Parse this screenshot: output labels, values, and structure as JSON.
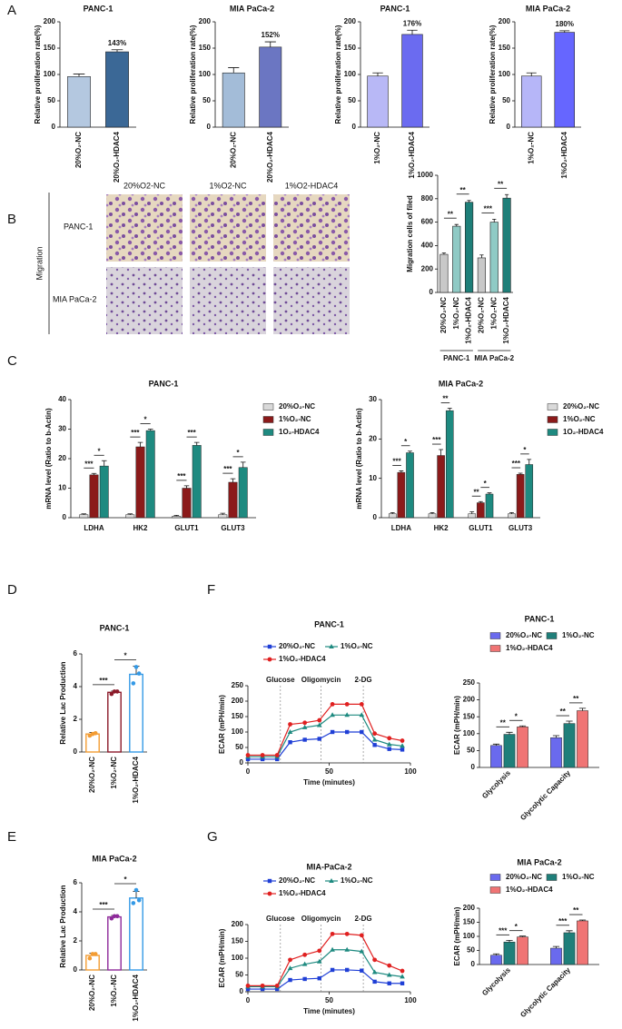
{
  "panel_labels": [
    "A",
    "B",
    "C",
    "D",
    "E",
    "F",
    "G"
  ],
  "migration_images": {
    "columns": [
      "20%O2-NC",
      "1%O2-NC",
      "1%O2-HDAC4"
    ],
    "rows": [
      "PANC-1",
      "MIA PaCa-2"
    ],
    "side_label": "Migration"
  },
  "chart_data": [
    {
      "type": "bar",
      "title": "PANC-1",
      "ylabel": "Relative proliferation rate(%)",
      "categories": [
        "20%O₂-NC",
        "20%O₂-HDAC4"
      ],
      "values": [
        96,
        143
      ],
      "errors": [
        5,
        4
      ],
      "value_labels": [
        null,
        "143%"
      ],
      "colors": [
        "#b4c8e0",
        "#3b6896"
      ],
      "ylim": [
        0,
        200
      ],
      "yticks": [
        0,
        50,
        100,
        150,
        200
      ]
    },
    {
      "type": "bar",
      "title": "MIA PaCa-2",
      "ylabel": "Relative proliferation rate(%)",
      "categories": [
        "20%O₂-NC",
        "20%O₂-HDAC4"
      ],
      "values": [
        103,
        152
      ],
      "errors": [
        10,
        10
      ],
      "value_labels": [
        null,
        "152%"
      ],
      "colors": [
        "#a3bcd8",
        "#6b76c2"
      ],
      "ylim": [
        0,
        200
      ],
      "yticks": [
        0,
        50,
        100,
        150,
        200
      ]
    },
    {
      "type": "bar",
      "title": "PANC-1",
      "ylabel": "Relative proliferation rate(%)",
      "categories": [
        "1%O₂-NC",
        "1%O₂-HDAC4"
      ],
      "values": [
        97,
        176
      ],
      "errors": [
        6,
        8
      ],
      "value_labels": [
        null,
        "176%"
      ],
      "colors": [
        "#b8b8f6",
        "#6b6bf0"
      ],
      "ylim": [
        0,
        200
      ],
      "yticks": [
        0,
        50,
        100,
        150,
        200
      ]
    },
    {
      "type": "bar",
      "title": "MIA PaCa-2",
      "ylabel": "Relative proliferation rate(%)",
      "categories": [
        "1%O₂-NC",
        "1%O₂-HDAC4"
      ],
      "values": [
        97,
        180
      ],
      "errors": [
        6,
        3
      ],
      "value_labels": [
        null,
        "180%"
      ],
      "colors": [
        "#b6b6f8",
        "#6666ff"
      ],
      "ylim": [
        0,
        200
      ],
      "yticks": [
        0,
        50,
        100,
        150,
        200
      ]
    },
    {
      "type": "bar",
      "ylabel": "Migration cells of filed",
      "categories": [
        "20%O₂-NC",
        "1%O₂-NC",
        "1%O₂-HDAC4",
        "20%O₂-NC",
        "1%O₂-NC",
        "1%O₂-HDAC4"
      ],
      "groups": [
        {
          "label": "PANC-1",
          "size": 3
        },
        {
          "label": "MIA PaCa-2",
          "size": 3
        }
      ],
      "values": [
        325,
        565,
        770,
        295,
        600,
        805
      ],
      "errors": [
        12,
        15,
        15,
        25,
        25,
        30
      ],
      "colors": [
        "#c8c8c8",
        "#8fcac5",
        "#1e7f79",
        "#c8c8c8",
        "#8fcac5",
        "#1e7f79"
      ],
      "ylim": [
        0,
        1000
      ],
      "yticks": [
        0,
        200,
        400,
        600,
        800,
        1000
      ],
      "significance": [
        {
          "text": "**",
          "between": [
            0,
            1
          ]
        },
        {
          "text": "**",
          "between": [
            1,
            2
          ]
        },
        {
          "text": "***",
          "between": [
            3,
            4
          ]
        },
        {
          "text": "**",
          "between": [
            4,
            5
          ]
        }
      ]
    },
    {
      "type": "grouped_bar",
      "title": "PANC-1",
      "ylabel": "mRNA level (Ratio to b-Actin)",
      "categories": [
        "LDHA",
        "HK2",
        "GLUT1",
        "GLUT3"
      ],
      "ylim": [
        0,
        40
      ],
      "yticks": [
        0,
        10,
        20,
        30,
        40
      ],
      "series": [
        {
          "name": "20%O₂-NC",
          "color": "#d9d9d9",
          "values": [
            1,
            1,
            0.5,
            1
          ],
          "errors": [
            0.3,
            0.3,
            0.3,
            0.5
          ]
        },
        {
          "name": "1%O₂-NC",
          "color": "#8b1a1a",
          "values": [
            14.5,
            24,
            10,
            12
          ],
          "errors": [
            0.5,
            1.5,
            0.8,
            1.2
          ]
        },
        {
          "name": "1O₂-HDAC4",
          "color": "#1e8a80",
          "values": [
            17.5,
            29.5,
            24.5,
            17
          ],
          "errors": [
            1.8,
            0.5,
            1,
            1.8
          ]
        }
      ],
      "significance": [
        {
          "category": 0,
          "between": [
            0,
            1
          ],
          "text": "***"
        },
        {
          "category": 0,
          "between": [
            1,
            2
          ],
          "text": "*"
        },
        {
          "category": 1,
          "between": [
            0,
            1
          ],
          "text": "***"
        },
        {
          "category": 1,
          "between": [
            1,
            2
          ],
          "text": "*"
        },
        {
          "category": 2,
          "between": [
            0,
            1
          ],
          "text": "***"
        },
        {
          "category": 2,
          "between": [
            1,
            2
          ],
          "text": "***"
        },
        {
          "category": 3,
          "between": [
            0,
            1
          ],
          "text": "***"
        },
        {
          "category": 3,
          "between": [
            1,
            2
          ],
          "text": "*"
        }
      ]
    },
    {
      "type": "grouped_bar",
      "title": "MIA PaCa-2",
      "ylabel": "mRNA level (Ratio to b-Actin)",
      "categories": [
        "LDHA",
        "HK2",
        "GLUT1",
        "GLUT3"
      ],
      "ylim": [
        0,
        30
      ],
      "yticks": [
        0,
        10,
        20,
        30
      ],
      "series": [
        {
          "name": "20%O₂-NC",
          "color": "#d9d9d9",
          "values": [
            1,
            1,
            1,
            1
          ],
          "errors": [
            0.3,
            0.3,
            0.5,
            0.3
          ]
        },
        {
          "name": "1%O₂-NC",
          "color": "#8b1a1a",
          "values": [
            11.5,
            15.8,
            3.8,
            11
          ],
          "errors": [
            0.4,
            1.5,
            0.3,
            0.3
          ]
        },
        {
          "name": "1O₂-HDAC4",
          "color": "#1e8a80",
          "values": [
            16.5,
            27.2,
            6,
            13.5
          ],
          "errors": [
            0.4,
            0.6,
            0.3,
            1.3
          ]
        }
      ],
      "significance": [
        {
          "category": 0,
          "between": [
            0,
            1
          ],
          "text": "***"
        },
        {
          "category": 0,
          "between": [
            1,
            2
          ],
          "text": "*"
        },
        {
          "category": 1,
          "between": [
            0,
            1
          ],
          "text": "***"
        },
        {
          "category": 1,
          "between": [
            1,
            2
          ],
          "text": "**"
        },
        {
          "category": 2,
          "between": [
            0,
            1
          ],
          "text": "**"
        },
        {
          "category": 2,
          "between": [
            1,
            2
          ],
          "text": "*"
        },
        {
          "category": 3,
          "between": [
            0,
            1
          ],
          "text": "***"
        },
        {
          "category": 3,
          "between": [
            1,
            2
          ],
          "text": "*"
        }
      ]
    },
    {
      "type": "bar",
      "style": "hollow",
      "title": "PANC-1",
      "ylabel": "Relative Lac Production",
      "categories": [
        "20%O₂-NC",
        "1%O₂-NC",
        "1%O₂-HDAC4"
      ],
      "values": [
        1.1,
        3.65,
        4.75
      ],
      "errors": [
        0.1,
        0.08,
        0.5
      ],
      "points": [
        [
          1.0,
          1.1,
          1.15
        ],
        [
          3.55,
          3.7,
          3.7
        ],
        [
          4.2,
          5.2,
          4.8
        ]
      ],
      "colors": [
        "#f39c33",
        "#8b1a2a",
        "#3399e6"
      ],
      "ylim": [
        0,
        6
      ],
      "yticks": [
        0,
        2,
        4,
        6
      ],
      "significance": [
        {
          "text": "***",
          "between": [
            0,
            1
          ]
        },
        {
          "text": "*",
          "between": [
            1,
            2
          ]
        }
      ]
    },
    {
      "type": "bar",
      "style": "hollow",
      "title": "MIA PaCa-2",
      "ylabel": "Relative Lac Production",
      "categories": [
        "20%O₂-NC",
        "1%O₂-NC",
        "1%O₂-HDAC4"
      ],
      "values": [
        1.0,
        3.65,
        4.95
      ],
      "errors": [
        0.15,
        0.1,
        0.45
      ],
      "points": [
        [
          0.8,
          1.1,
          1.1
        ],
        [
          3.55,
          3.7,
          3.7
        ],
        [
          4.6,
          5.5,
          4.8
        ]
      ],
      "colors": [
        "#f39c33",
        "#8e2a9a",
        "#3399e6"
      ],
      "ylim": [
        0,
        6
      ],
      "yticks": [
        0,
        2,
        4,
        6
      ],
      "significance": [
        {
          "text": "***",
          "between": [
            0,
            1
          ]
        },
        {
          "text": "*",
          "between": [
            1,
            2
          ]
        }
      ]
    },
    {
      "type": "line",
      "title": "PANC-1",
      "xlabel": "Time (minutes)",
      "ylabel": "ECAR (mPH/min)",
      "x": [
        0,
        9,
        18,
        26,
        35,
        44,
        52,
        61,
        70,
        78,
        87,
        95
      ],
      "xlim": [
        0,
        100
      ],
      "xticks": [
        0,
        50,
        100
      ],
      "ylim": [
        0,
        250
      ],
      "yticks": [
        0,
        50,
        100,
        150,
        200,
        250
      ],
      "events": [
        {
          "x": 20,
          "label": "Glucose"
        },
        {
          "x": 45,
          "label": "Oligomycin"
        },
        {
          "x": 71,
          "label": "2-DG"
        }
      ],
      "series": [
        {
          "name": "20%O₂-NC",
          "color": "#1f3fd6",
          "marker": "square",
          "values": [
            12,
            12,
            12,
            67,
            75,
            78,
            100,
            100,
            100,
            58,
            45,
            43
          ]
        },
        {
          "name": "1%O₂-NC",
          "color": "#1e8a80",
          "marker": "triangle",
          "values": [
            20,
            20,
            20,
            100,
            115,
            122,
            155,
            155,
            155,
            75,
            60,
            55
          ]
        },
        {
          "name": "1%O₂-HDAC4",
          "color": "#e02020",
          "marker": "circle",
          "values": [
            25,
            25,
            25,
            125,
            130,
            138,
            190,
            190,
            190,
            95,
            80,
            72
          ]
        }
      ]
    },
    {
      "type": "grouped_bar",
      "title": "PANC-1",
      "ylabel": "ECAR (mPH/min)",
      "categories": [
        "Glycolysis",
        "Glycolytic Capacity"
      ],
      "ylim": [
        0,
        250
      ],
      "yticks": [
        0,
        50,
        100,
        150,
        200,
        250
      ],
      "series": [
        {
          "name": "20%O₂-NC",
          "color": "#6a6aee",
          "values": [
            65,
            88
          ],
          "errors": [
            4,
            6
          ]
        },
        {
          "name": "1%O₂-NC",
          "color": "#1f7f7a",
          "values": [
            98,
            130
          ],
          "errors": [
            6,
            7
          ]
        },
        {
          "name": "1%O₂-HDAC4",
          "color": "#f07474",
          "values": [
            120,
            168
          ],
          "errors": [
            3,
            7
          ]
        }
      ],
      "significance": [
        {
          "category": 0,
          "between": [
            0,
            1
          ],
          "text": "**"
        },
        {
          "category": 0,
          "between": [
            1,
            2
          ],
          "text": "*"
        },
        {
          "category": 1,
          "between": [
            0,
            1
          ],
          "text": "**"
        },
        {
          "category": 1,
          "between": [
            1,
            2
          ],
          "text": "**"
        }
      ]
    },
    {
      "type": "line",
      "title": "MIA-PaCa-2",
      "xlabel": "Time (minutes)",
      "ylabel": "ECAR (mPH/min)",
      "x": [
        0,
        9,
        18,
        26,
        35,
        44,
        52,
        61,
        70,
        78,
        87,
        95
      ],
      "xlim": [
        0,
        100
      ],
      "xticks": [
        0,
        50,
        100
      ],
      "ylim": [
        0,
        200
      ],
      "yticks": [
        0,
        50,
        100,
        150,
        200
      ],
      "events": [
        {
          "x": 20,
          "label": "Glucose"
        },
        {
          "x": 45,
          "label": "Oligomycin"
        },
        {
          "x": 71,
          "label": "2-DG"
        }
      ],
      "series": [
        {
          "name": "20%O₂-NC",
          "color": "#1f3fd6",
          "marker": "square",
          "values": [
            8,
            8,
            8,
            35,
            38,
            40,
            65,
            65,
            63,
            30,
            25,
            25
          ]
        },
        {
          "name": "1%O₂-NC",
          "color": "#1e8a80",
          "marker": "triangle",
          "values": [
            15,
            15,
            15,
            70,
            82,
            90,
            125,
            125,
            120,
            58,
            50,
            45
          ]
        },
        {
          "name": "1%O₂-HDAC4",
          "color": "#e02020",
          "marker": "circle",
          "values": [
            18,
            18,
            18,
            95,
            110,
            122,
            172,
            172,
            168,
            95,
            78,
            62
          ]
        }
      ]
    },
    {
      "type": "grouped_bar",
      "title": "MIA PaCa-2",
      "ylabel": "ECAR (mPH/min)",
      "categories": [
        "Glycolysis",
        "Glycolytic Capacity"
      ],
      "ylim": [
        0,
        200
      ],
      "yticks": [
        0,
        50,
        100,
        150,
        200
      ],
      "series": [
        {
          "name": "20%O₂-NC",
          "color": "#6a6aee",
          "values": [
            33,
            58
          ],
          "errors": [
            5,
            6
          ]
        },
        {
          "name": "1%O₂-NC",
          "color": "#1f7f7a",
          "values": [
            80,
            113
          ],
          "errors": [
            6,
            7
          ]
        },
        {
          "name": "1%O₂-HDAC4",
          "color": "#f07474",
          "values": [
            98,
            155
          ],
          "errors": [
            3,
            3
          ]
        }
      ],
      "significance": [
        {
          "category": 0,
          "between": [
            0,
            1
          ],
          "text": "***"
        },
        {
          "category": 0,
          "between": [
            1,
            2
          ],
          "text": "*"
        },
        {
          "category": 1,
          "between": [
            0,
            1
          ],
          "text": "***"
        },
        {
          "category": 1,
          "between": [
            1,
            2
          ],
          "text": "**"
        }
      ]
    }
  ]
}
